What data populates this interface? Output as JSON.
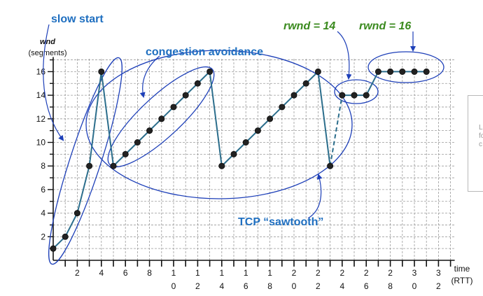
{
  "title": "",
  "y_axis": {
    "label_line1": "wnd",
    "label_line2": "(segments)",
    "ticks": [
      "2",
      "4",
      "6",
      "8",
      "10",
      "12",
      "14",
      "16"
    ]
  },
  "x_axis": {
    "label_line1": "time",
    "label_line2": "(RTT)",
    "ticks": [
      {
        "top": "2",
        "bottom": ""
      },
      {
        "top": "4",
        "bottom": ""
      },
      {
        "top": "6",
        "bottom": ""
      },
      {
        "top": "8",
        "bottom": ""
      },
      {
        "top": "1",
        "bottom": "0"
      },
      {
        "top": "1",
        "bottom": "2"
      },
      {
        "top": "1",
        "bottom": "4"
      },
      {
        "top": "1",
        "bottom": "6"
      },
      {
        "top": "1",
        "bottom": "8"
      },
      {
        "top": "2",
        "bottom": "0"
      },
      {
        "top": "2",
        "bottom": "2"
      },
      {
        "top": "2",
        "bottom": "4"
      },
      {
        "top": "2",
        "bottom": "6"
      },
      {
        "top": "2",
        "bottom": "8"
      },
      {
        "top": "3",
        "bottom": "0"
      },
      {
        "top": "3",
        "bottom": "2"
      }
    ]
  },
  "annotations": {
    "slow_start": "slow start",
    "congestion_avoidance": "congestion avoidance",
    "sawtooth": "TCP “sawtooth”",
    "rwnd14": "rwnd = 14",
    "rwnd16": "rwnd = 16"
  },
  "side_card": [
    "L",
    "fo",
    "c"
  ],
  "colors": {
    "line": "#2c6e8c",
    "annotation": "#1d3fb8",
    "label_blue": "#1f6fc0",
    "label_green": "#3a8a1e",
    "grid": "#9a9a9a",
    "point": "#222222"
  },
  "chart_data": {
    "type": "line",
    "xlabel": "time (RTT)",
    "ylabel": "wnd (segments)",
    "xlim": [
      0,
      33
    ],
    "ylim": [
      0,
      17
    ],
    "series": [
      {
        "x": [
          0,
          1,
          2,
          3,
          4,
          5,
          6,
          7,
          8,
          9,
          10,
          11,
          12,
          13,
          14,
          15,
          16,
          17,
          18,
          19,
          20,
          21,
          22,
          23
        ],
        "values": [
          1,
          2,
          4,
          8,
          16,
          8,
          9,
          10,
          11,
          12,
          13,
          14,
          15,
          16,
          8,
          9,
          10,
          11,
          12,
          13,
          14,
          15,
          16,
          8
        ]
      },
      {
        "x": [
          24,
          25,
          26,
          27,
          28,
          29,
          30,
          31
        ],
        "values": [
          14,
          14,
          14,
          16,
          16,
          16,
          16,
          16
        ]
      }
    ],
    "dashed_transition": {
      "from": [
        23,
        8
      ],
      "to": [
        24,
        14
      ]
    }
  }
}
